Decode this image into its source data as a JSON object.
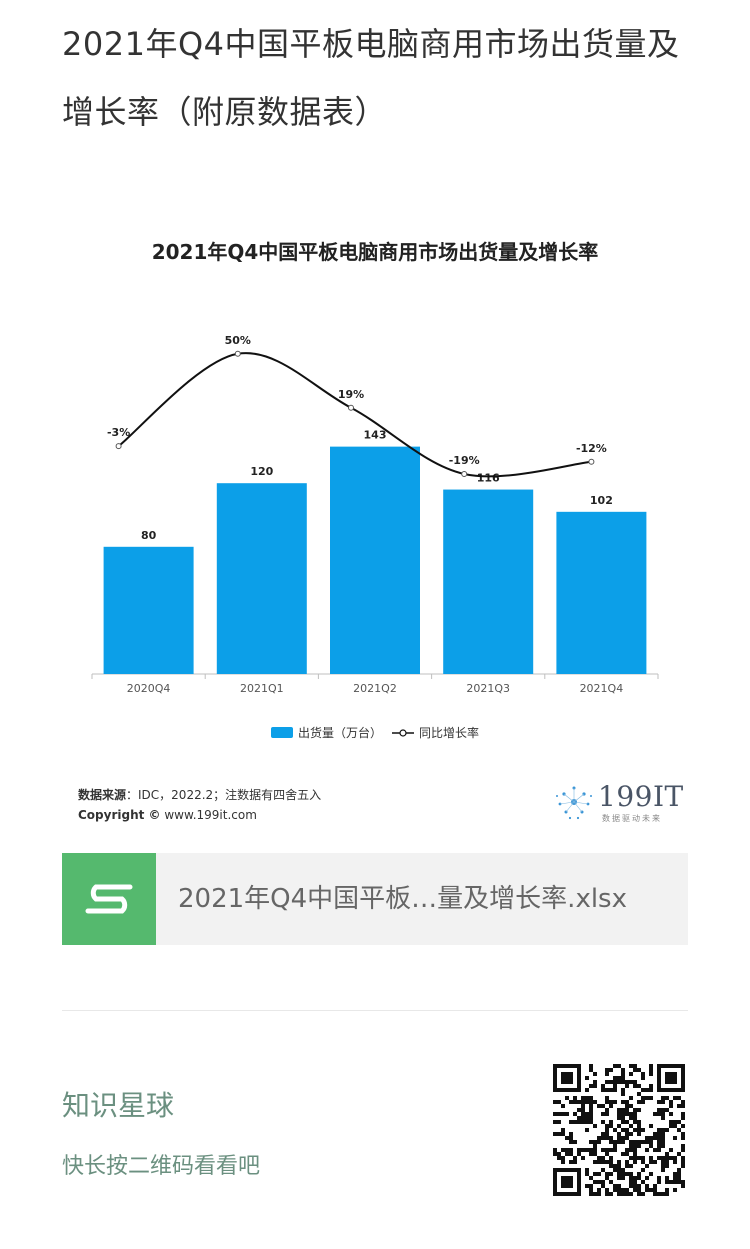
{
  "article": {
    "title": "2021年Q4中国平板电脑商用市场出货量及增长率（附原数据表）"
  },
  "chart_data": {
    "type": "bar+line",
    "title": "2021年Q4中国平板电脑商用市场出货量及增长率",
    "categories": [
      "2020Q4",
      "2021Q1",
      "2021Q2",
      "2021Q3",
      "2021Q4"
    ],
    "series": [
      {
        "name": "出货量（万台）",
        "type": "bar",
        "values": [
          80,
          120,
          143,
          116,
          102
        ],
        "color": "#0c9fe8"
      },
      {
        "name": "同比增长率",
        "type": "line",
        "values": [
          -3,
          50,
          19,
          -19,
          -12
        ],
        "labels": [
          "-3%",
          "50%",
          "19%",
          "-19%",
          "-12%"
        ],
        "color": "#111111"
      }
    ],
    "bar_ylim": [
      0,
      200
    ],
    "line_ylim": [
      -50,
      70
    ],
    "legend_position": "bottom"
  },
  "footer": {
    "source_label": "数据来源",
    "source_text": "：IDC，2022.2；注数据有四舍五入",
    "copyright_label": "Copyright ©",
    "copyright_text": " www.199it.com",
    "logo_text": "199IT",
    "logo_sub": "数据驱动未来"
  },
  "attachment": {
    "file_name": "2021年Q4中国平板…量及增长率.xlsx",
    "icon": "spreadsheet-s-icon",
    "icon_color": "#55b96e"
  },
  "promo": {
    "title": "知识星球",
    "subtitle": "快长按二维码看看吧"
  }
}
